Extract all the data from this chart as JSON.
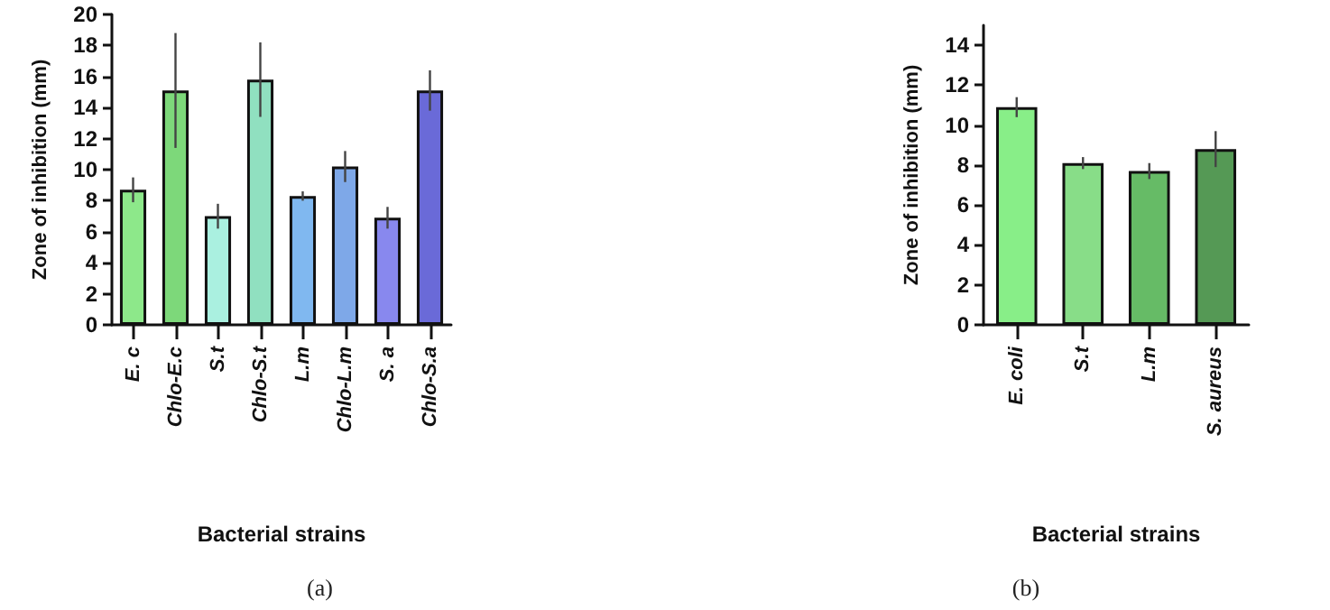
{
  "chart_data": [
    {
      "type": "bar",
      "xlabel": "Bacterial strains",
      "ylabel": "Zone of inhibition (mm)",
      "categories": [
        "E. c",
        "Chlo-E.c",
        "S.t",
        "Chlo-S.t",
        "L.m",
        "Chlo-L.m",
        "S. a",
        "Chlo-S.a"
      ],
      "values": [
        8.7,
        15.1,
        7.0,
        15.8,
        8.3,
        10.2,
        6.9,
        15.1
      ],
      "errors": [
        0.8,
        3.7,
        0.8,
        2.4,
        0.3,
        1.0,
        0.7,
        1.3
      ],
      "colors": [
        "#8de88a",
        "#7dd87a",
        "#aaf0e0",
        "#90e0c0",
        "#80b8f0",
        "#7ea8e8",
        "#8888ee",
        "#6a6ad8"
      ],
      "ylim": [
        0,
        20
      ],
      "yticks": [
        0,
        2,
        4,
        6,
        8,
        10,
        12,
        14,
        16,
        18,
        20
      ],
      "grid": false,
      "annotations": [
        "(a)"
      ]
    },
    {
      "type": "bar",
      "xlabel": "Bacterial strains",
      "ylabel": "Zone of inhibition (mm)",
      "categories": [
        "E. coli",
        "S.t",
        "L.m",
        "S. aureus"
      ],
      "values": [
        10.9,
        8.1,
        7.7,
        8.8
      ],
      "errors": [
        0.5,
        0.3,
        0.4,
        0.9
      ],
      "colors": [
        "#88ee88",
        "#88dd88",
        "#66bb66",
        "#559955"
      ],
      "ylim": [
        0,
        15
      ],
      "yticks": [
        0,
        2,
        4,
        6,
        8,
        10,
        12,
        14
      ],
      "grid": false,
      "annotations": [
        "(b)"
      ]
    }
  ]
}
